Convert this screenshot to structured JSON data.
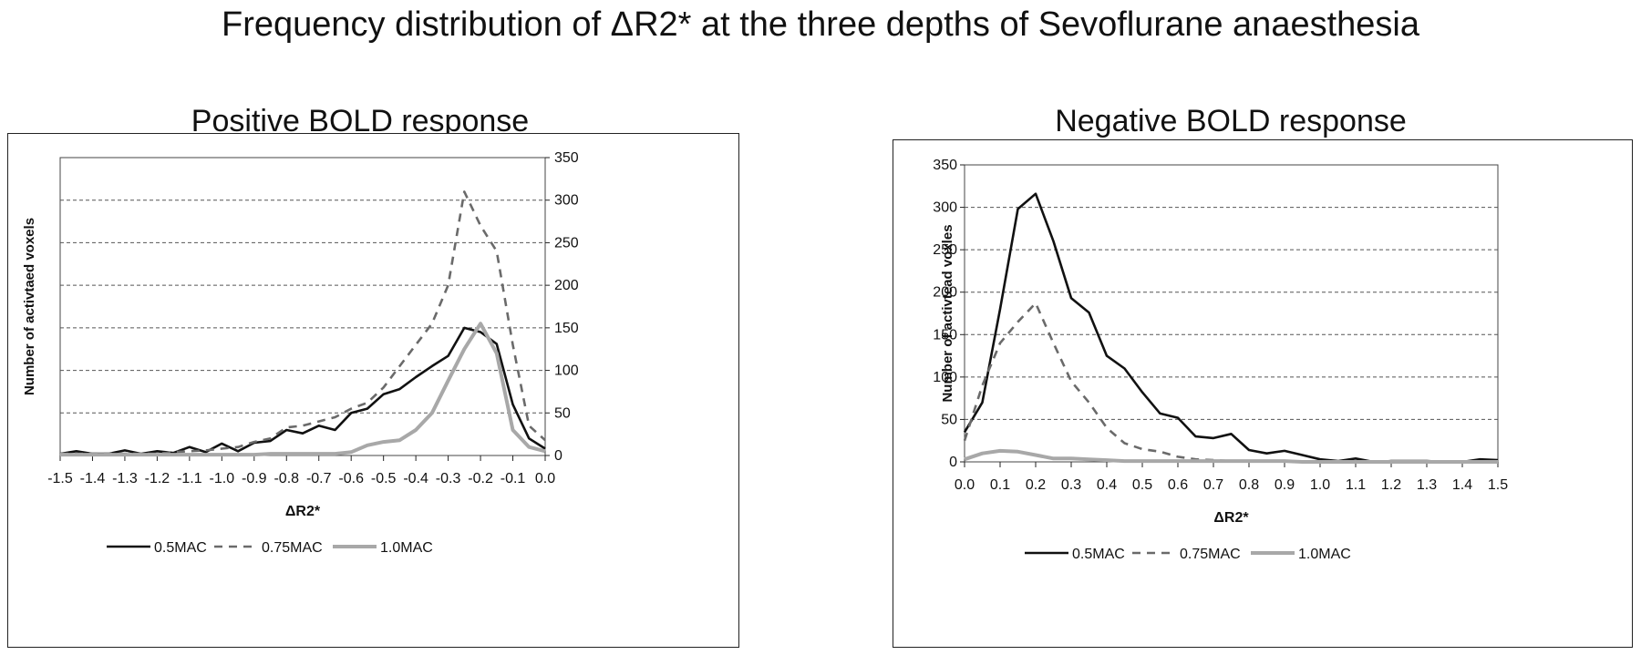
{
  "page": {
    "title": "Frequency distribution of ΔR2* at the three depths of Sevoflurane anaesthesia"
  },
  "colors": {
    "s05": "#111111",
    "s075": "#6a6a6a",
    "s10": "#a8a8a8",
    "grid": "#555555"
  },
  "chart_data": [
    {
      "type": "line",
      "title": "Positive BOLD response",
      "xlabel": "ΔR2*",
      "ylabel": "Number of activtaed voxels",
      "ylim": [
        0,
        350
      ],
      "yticks": [
        0,
        50,
        100,
        150,
        200,
        250,
        300,
        350
      ],
      "y_axis_side": "right",
      "grid": "horizontal dashed",
      "legend": "bottom",
      "x": [
        -1.5,
        -1.45,
        -1.4,
        -1.35,
        -1.3,
        -1.25,
        -1.2,
        -1.15,
        -1.1,
        -1.05,
        -1.0,
        -0.95,
        -0.9,
        -0.85,
        -0.8,
        -0.75,
        -0.7,
        -0.65,
        -0.6,
        -0.55,
        -0.5,
        -0.45,
        -0.4,
        -0.35,
        -0.3,
        -0.25,
        -0.2,
        -0.15,
        -0.1,
        -0.05,
        0.0
      ],
      "xticks": [
        "-1.5",
        "-1.4",
        "-1.3",
        "-1.2",
        "-1.1",
        "-1.0",
        "-0.9",
        "-0.8",
        "-0.7",
        "-0.6",
        "-0.5",
        "-0.4",
        "-0.3",
        "-0.2",
        "-0.1",
        "0.0"
      ],
      "series": [
        {
          "name": "0.5MAC",
          "style": "solid",
          "color": "#111111",
          "values": [
            2,
            5,
            2,
            2,
            6,
            2,
            5,
            3,
            10,
            4,
            14,
            5,
            15,
            17,
            30,
            26,
            35,
            30,
            50,
            55,
            72,
            78,
            92,
            105,
            117,
            150,
            145,
            131,
            60,
            20,
            8
          ]
        },
        {
          "name": "0.75MAC",
          "style": "dashed",
          "color": "#6a6a6a",
          "values": [
            2,
            2,
            2,
            2,
            2,
            2,
            2,
            4,
            5,
            6,
            8,
            10,
            16,
            20,
            33,
            35,
            40,
            45,
            55,
            62,
            80,
            105,
            130,
            155,
            200,
            310,
            270,
            240,
            130,
            35,
            18
          ]
        },
        {
          "name": "1.0MAC",
          "style": "solid",
          "color": "#a8a8a8",
          "values": [
            1,
            1,
            1,
            1,
            1,
            1,
            1,
            1,
            1,
            1,
            1,
            1,
            1,
            2,
            2,
            2,
            2,
            2,
            4,
            12,
            16,
            18,
            30,
            50,
            88,
            125,
            155,
            120,
            30,
            10,
            5
          ]
        }
      ]
    },
    {
      "type": "line",
      "title": "Negative BOLD response",
      "xlabel": "ΔR2*",
      "ylabel": "Number of activtead voxles",
      "ylim": [
        0,
        350
      ],
      "yticks": [
        0,
        50,
        100,
        150,
        200,
        250,
        300,
        350
      ],
      "y_axis_side": "left",
      "grid": "horizontal dashed",
      "legend": "bottom",
      "x": [
        0.0,
        0.05,
        0.1,
        0.15,
        0.2,
        0.25,
        0.3,
        0.35,
        0.4,
        0.45,
        0.5,
        0.55,
        0.6,
        0.65,
        0.7,
        0.75,
        0.8,
        0.85,
        0.9,
        0.95,
        1.0,
        1.05,
        1.1,
        1.15,
        1.2,
        1.25,
        1.3,
        1.35,
        1.4,
        1.45,
        1.5
      ],
      "xticks": [
        "0.0",
        "0.1",
        "0.2",
        "0.3",
        "0.4",
        "0.5",
        "0.6",
        "0.7",
        "0.8",
        "0.9",
        "1.0",
        "1.1",
        "1.2",
        "1.3",
        "1.4",
        "1.5"
      ],
      "series": [
        {
          "name": "0.5MAC",
          "style": "solid",
          "color": "#111111",
          "values": [
            35,
            70,
            180,
            298,
            316,
            260,
            193,
            176,
            125,
            110,
            82,
            57,
            52,
            30,
            28,
            33,
            14,
            10,
            13,
            8,
            3,
            1,
            4,
            0,
            1,
            1,
            1,
            0,
            0,
            3,
            2
          ]
        },
        {
          "name": "0.75MAC",
          "style": "dashed",
          "color": "#6a6a6a",
          "values": [
            25,
            90,
            140,
            165,
            187,
            140,
            95,
            70,
            40,
            22,
            15,
            12,
            6,
            3,
            2,
            1,
            1,
            1,
            1,
            0,
            0,
            0,
            0,
            0,
            0,
            0,
            0,
            0,
            0,
            0,
            0
          ]
        },
        {
          "name": "1.0MAC",
          "style": "solid",
          "color": "#a8a8a8",
          "values": [
            3,
            10,
            13,
            12,
            8,
            4,
            4,
            3,
            2,
            1,
            1,
            1,
            1,
            1,
            1,
            1,
            1,
            1,
            1,
            0,
            0,
            0,
            0,
            0,
            0,
            0,
            0,
            0,
            0,
            0,
            0
          ]
        }
      ]
    }
  ]
}
